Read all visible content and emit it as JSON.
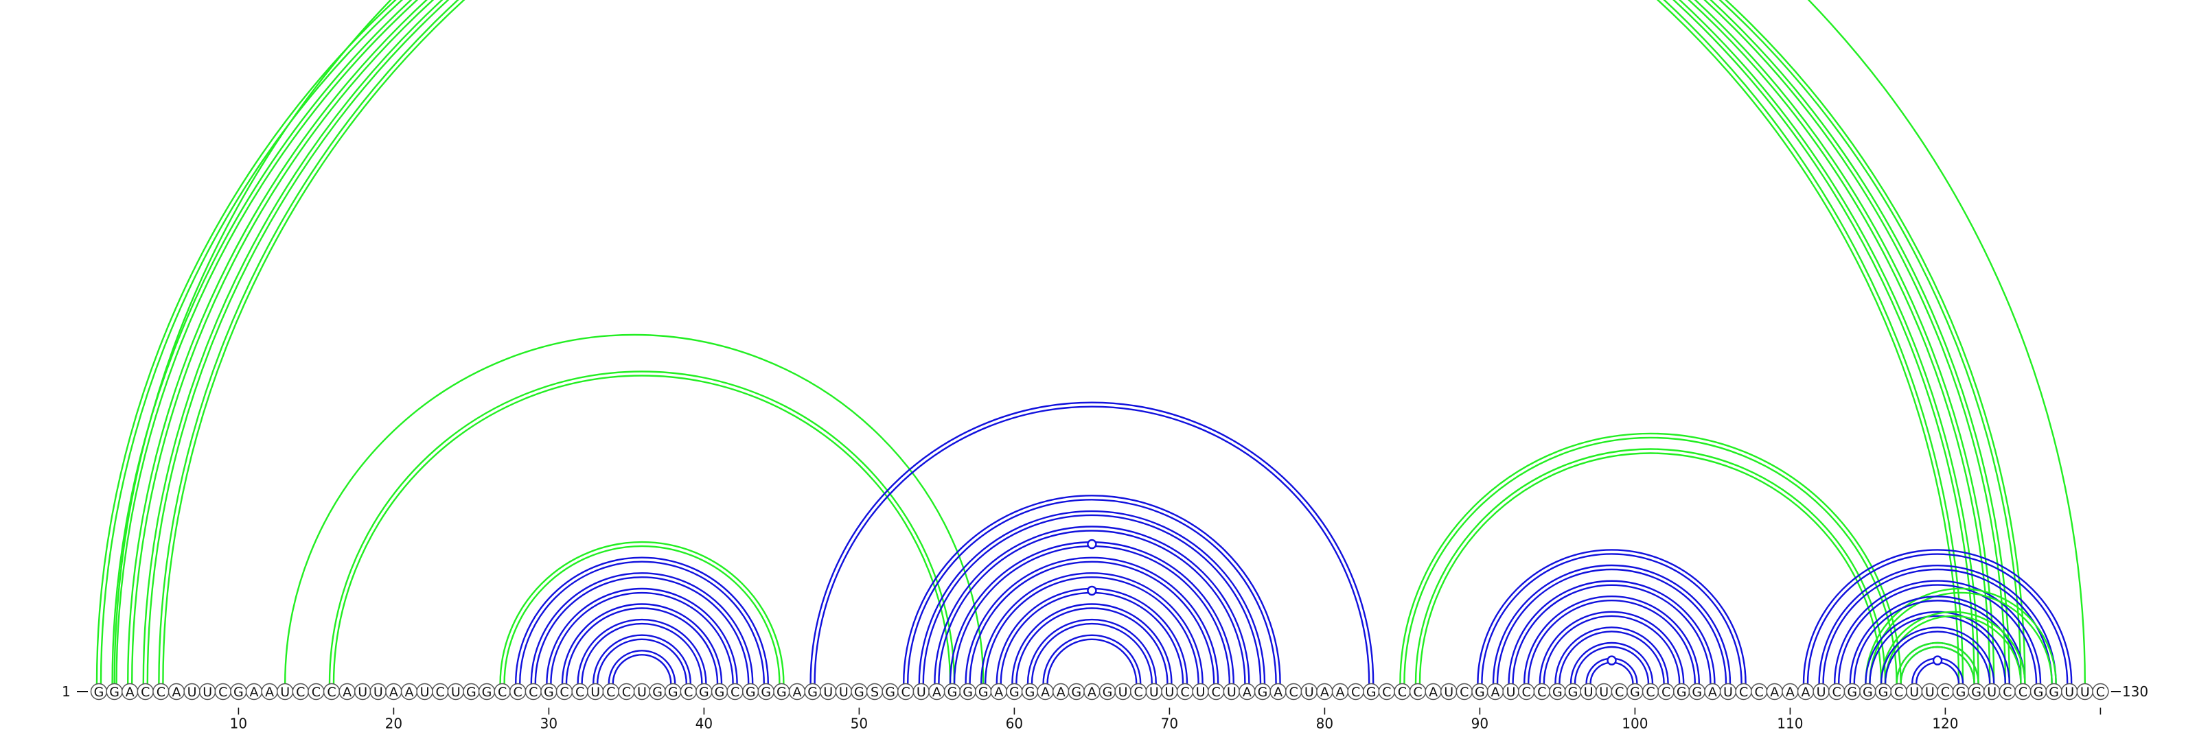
{
  "sequence": "GGACCAUUCGAAUCCCAUUAAUCUGGCCCGCCUCCUGGCGGCGGGAGUUGSGCUAGGGAGGAAGAGUCUUCUCUAGACUAACGCCCAUCGAUCCGGUUCGCCGGAUCCAAAUCGGGCUUCGGUCCGGUUC",
  "start_label": "1",
  "end_label": "130",
  "ticks": [
    {
      "pos": 10,
      "label": "10"
    },
    {
      "pos": 20,
      "label": "20"
    },
    {
      "pos": 30,
      "label": "30"
    },
    {
      "pos": 40,
      "label": "40"
    },
    {
      "pos": 50,
      "label": "50"
    },
    {
      "pos": 60,
      "label": "60"
    },
    {
      "pos": 70,
      "label": "70"
    },
    {
      "pos": 80,
      "label": "80"
    },
    {
      "pos": 90,
      "label": "90"
    },
    {
      "pos": 100,
      "label": "100"
    },
    {
      "pos": 110,
      "label": "110"
    },
    {
      "pos": 120,
      "label": "120"
    },
    {
      "pos": 130,
      "label": ""
    }
  ],
  "colors": {
    "green": "#22ee22",
    "blue": "#1111dd",
    "nucleotide_fill": "#ffffff",
    "nucleotide_stroke": "#555555"
  },
  "pairs": [
    {
      "i": 1,
      "j": 121,
      "color": "green",
      "style": "double"
    },
    {
      "i": 2,
      "j": 122,
      "color": "green",
      "style": "double"
    },
    {
      "i": 3,
      "j": 123,
      "color": "green",
      "style": "double"
    },
    {
      "i": 4,
      "j": 124,
      "color": "green",
      "style": "double"
    },
    {
      "i": 5,
      "j": 125,
      "color": "green",
      "style": "double"
    },
    {
      "i": 2,
      "j": 129,
      "color": "green",
      "style": "thin",
      "marker": true
    },
    {
      "i": 13,
      "j": 58,
      "color": "green",
      "style": "thin"
    },
    {
      "i": 16,
      "j": 56,
      "color": "green",
      "style": "double"
    },
    {
      "i": 27,
      "j": 45,
      "color": "green",
      "style": "double"
    },
    {
      "i": 28,
      "j": 44,
      "color": "blue",
      "style": "double"
    },
    {
      "i": 29,
      "j": 43,
      "color": "blue",
      "style": "double"
    },
    {
      "i": 30,
      "j": 42,
      "color": "blue",
      "style": "double"
    },
    {
      "i": 31,
      "j": 41,
      "color": "blue",
      "style": "double"
    },
    {
      "i": 32,
      "j": 40,
      "color": "blue",
      "style": "double"
    },
    {
      "i": 33,
      "j": 39,
      "color": "blue",
      "style": "double"
    },
    {
      "i": 34,
      "j": 38,
      "color": "blue",
      "style": "double"
    },
    {
      "i": 47,
      "j": 83,
      "color": "blue",
      "style": "double"
    },
    {
      "i": 53,
      "j": 77,
      "color": "blue",
      "style": "double"
    },
    {
      "i": 54,
      "j": 76,
      "color": "blue",
      "style": "double"
    },
    {
      "i": 55,
      "j": 75,
      "color": "blue",
      "style": "double"
    },
    {
      "i": 56,
      "j": 74,
      "color": "blue",
      "style": "double",
      "marker": true
    },
    {
      "i": 57,
      "j": 73,
      "color": "blue",
      "style": "double"
    },
    {
      "i": 58,
      "j": 72,
      "color": "blue",
      "style": "double"
    },
    {
      "i": 59,
      "j": 71,
      "color": "blue",
      "style": "double",
      "marker": true
    },
    {
      "i": 60,
      "j": 70,
      "color": "blue",
      "style": "double"
    },
    {
      "i": 61,
      "j": 69,
      "color": "blue",
      "style": "double"
    },
    {
      "i": 62,
      "j": 68,
      "color": "blue",
      "style": "double"
    },
    {
      "i": 85,
      "j": 117,
      "color": "green",
      "style": "double"
    },
    {
      "i": 86,
      "j": 116,
      "color": "green",
      "style": "double"
    },
    {
      "i": 90,
      "j": 107,
      "color": "blue",
      "style": "double"
    },
    {
      "i": 91,
      "j": 106,
      "color": "blue",
      "style": "double"
    },
    {
      "i": 92,
      "j": 105,
      "color": "blue",
      "style": "double"
    },
    {
      "i": 93,
      "j": 104,
      "color": "blue",
      "style": "double"
    },
    {
      "i": 94,
      "j": 103,
      "color": "blue",
      "style": "double"
    },
    {
      "i": 95,
      "j": 102,
      "color": "blue",
      "style": "double"
    },
    {
      "i": 96,
      "j": 101,
      "color": "blue",
      "style": "double"
    },
    {
      "i": 97,
      "j": 100,
      "color": "blue",
      "style": "double",
      "marker": true
    },
    {
      "i": 111,
      "j": 128,
      "color": "blue",
      "style": "double"
    },
    {
      "i": 112,
      "j": 127,
      "color": "blue",
      "style": "double"
    },
    {
      "i": 113,
      "j": 126,
      "color": "blue",
      "style": "double"
    },
    {
      "i": 114,
      "j": 125,
      "color": "blue",
      "style": "double"
    },
    {
      "i": 115,
      "j": 124,
      "color": "blue",
      "style": "double"
    },
    {
      "i": 116,
      "j": 123,
      "color": "blue",
      "style": "double"
    },
    {
      "i": 117,
      "j": 122,
      "color": "blue",
      "style": "double"
    },
    {
      "i": 118,
      "j": 121,
      "color": "blue",
      "style": "double",
      "marker": true
    },
    {
      "i": 117,
      "j": 122,
      "color": "green",
      "style": "double"
    },
    {
      "i": 116,
      "j": 125,
      "color": "green",
      "style": "double"
    },
    {
      "i": 115,
      "j": 127,
      "color": "green",
      "style": "double"
    }
  ]
}
